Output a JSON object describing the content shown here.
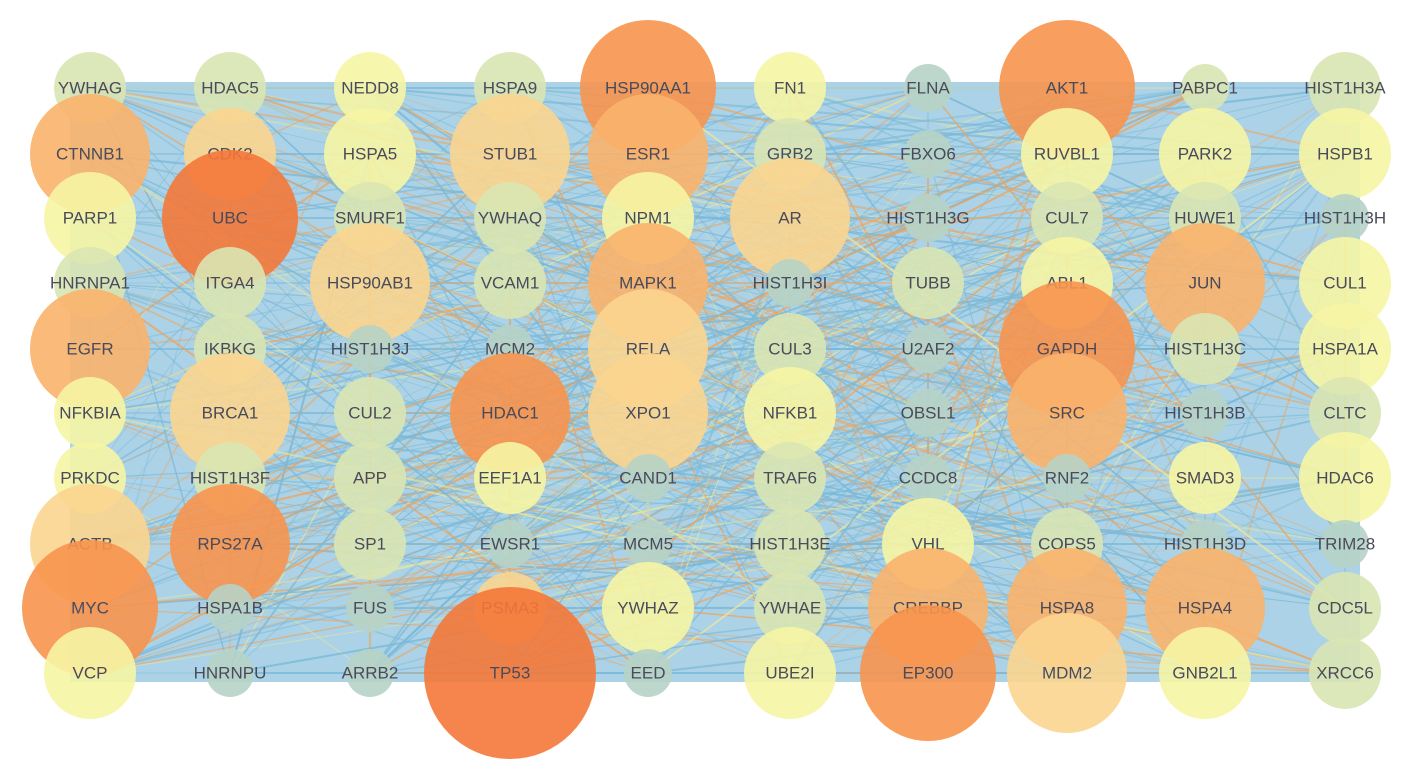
{
  "title": "",
  "layout": {
    "columns": 10,
    "rows": 10
  },
  "node_colors": {
    "tier0": "#b7d3c6",
    "tier1": "#d9e6b2",
    "tier2": "#f6f5a4",
    "tier3": "#fbd58f",
    "tier4": "#f9b26b",
    "tier5": "#f7944e",
    "tier6": "#f47838"
  },
  "edge_colors": {
    "primary": "#79b8d8",
    "secondary": "#f0a35a",
    "tertiary": "#e8e6a0"
  },
  "nodes": [
    {
      "label": "YWHAG",
      "tier": 1,
      "size": 1
    },
    {
      "label": "HDAC5",
      "tier": 1,
      "size": 1
    },
    {
      "label": "NEDD8",
      "tier": 2,
      "size": 1
    },
    {
      "label": "HSPA9",
      "tier": 1,
      "size": 1
    },
    {
      "label": "HSP90AA1",
      "tier": 5,
      "size": 4
    },
    {
      "label": "FN1",
      "tier": 2,
      "size": 1
    },
    {
      "label": "FLNA",
      "tier": 0,
      "size": 0
    },
    {
      "label": "AKT1",
      "tier": 5,
      "size": 4
    },
    {
      "label": "PABPC1",
      "tier": 1,
      "size": 0
    },
    {
      "label": "HIST1H3A",
      "tier": 1,
      "size": 1
    },
    {
      "label": "CTNNB1",
      "tier": 4,
      "size": 3
    },
    {
      "label": "CDK2",
      "tier": 3,
      "size": 2
    },
    {
      "label": "HSPA5",
      "tier": 2,
      "size": 2
    },
    {
      "label": "STUB1",
      "tier": 3,
      "size": 3
    },
    {
      "label": "ESR1",
      "tier": 4,
      "size": 3
    },
    {
      "label": "GRB2",
      "tier": 1,
      "size": 1
    },
    {
      "label": "FBXO6",
      "tier": 0,
      "size": 0
    },
    {
      "label": "RUVBL1",
      "tier": 2,
      "size": 2
    },
    {
      "label": "PARK2",
      "tier": 2,
      "size": 2
    },
    {
      "label": "HSPB1",
      "tier": 2,
      "size": 2
    },
    {
      "label": "PARP1",
      "tier": 2,
      "size": 2
    },
    {
      "label": "UBC",
      "tier": 6,
      "size": 4
    },
    {
      "label": "SMURF1",
      "tier": 1,
      "size": 1
    },
    {
      "label": "YWHAQ",
      "tier": 1,
      "size": 1
    },
    {
      "label": "NPM1",
      "tier": 2,
      "size": 2
    },
    {
      "label": "AR",
      "tier": 3,
      "size": 3
    },
    {
      "label": "HIST1H3G",
      "tier": 0,
      "size": 0
    },
    {
      "label": "CUL7",
      "tier": 1,
      "size": 1
    },
    {
      "label": "HUWE1",
      "tier": 1,
      "size": 1
    },
    {
      "label": "HIST1H3H",
      "tier": 0,
      "size": 0
    },
    {
      "label": "HNRNPA1",
      "tier": 1,
      "size": 1
    },
    {
      "label": "ITGA4",
      "tier": 1,
      "size": 1
    },
    {
      "label": "HSP90AB1",
      "tier": 3,
      "size": 3
    },
    {
      "label": "VCAM1",
      "tier": 1,
      "size": 1
    },
    {
      "label": "MAPK1",
      "tier": 4,
      "size": 3
    },
    {
      "label": "HIST1H3I",
      "tier": 0,
      "size": 0
    },
    {
      "label": "TUBB",
      "tier": 1,
      "size": 1
    },
    {
      "label": "ABL1",
      "tier": 2,
      "size": 2
    },
    {
      "label": "JUN",
      "tier": 4,
      "size": 3
    },
    {
      "label": "CUL1",
      "tier": 2,
      "size": 2
    },
    {
      "label": "EGFR",
      "tier": 4,
      "size": 3
    },
    {
      "label": "IKBKG",
      "tier": 1,
      "size": 1
    },
    {
      "label": "HIST1H3J",
      "tier": 0,
      "size": 0
    },
    {
      "label": "MCM2",
      "tier": 0,
      "size": 0
    },
    {
      "label": "RELA",
      "tier": 3,
      "size": 3
    },
    {
      "label": "CUL3",
      "tier": 1,
      "size": 1
    },
    {
      "label": "U2AF2",
      "tier": 0,
      "size": 0
    },
    {
      "label": "GAPDH",
      "tier": 5,
      "size": 4
    },
    {
      "label": "HIST1H3C",
      "tier": 1,
      "size": 1
    },
    {
      "label": "HSPA1A",
      "tier": 2,
      "size": 2
    },
    {
      "label": "NFKBIA",
      "tier": 2,
      "size": 1
    },
    {
      "label": "BRCA1",
      "tier": 3,
      "size": 3
    },
    {
      "label": "CUL2",
      "tier": 1,
      "size": 1
    },
    {
      "label": "HDAC1",
      "tier": 5,
      "size": 3
    },
    {
      "label": "XPO1",
      "tier": 3,
      "size": 3
    },
    {
      "label": "NFKB1",
      "tier": 2,
      "size": 2
    },
    {
      "label": "OBSL1",
      "tier": 0,
      "size": 0
    },
    {
      "label": "SRC",
      "tier": 4,
      "size": 3
    },
    {
      "label": "HIST1H3B",
      "tier": 0,
      "size": 0
    },
    {
      "label": "CLTC",
      "tier": 1,
      "size": 1
    },
    {
      "label": "PRKDC",
      "tier": 2,
      "size": 1
    },
    {
      "label": "HIST1H3F",
      "tier": 1,
      "size": 1
    },
    {
      "label": "APP",
      "tier": 1,
      "size": 1
    },
    {
      "label": "EEF1A1",
      "tier": 2,
      "size": 1
    },
    {
      "label": "CAND1",
      "tier": 0,
      "size": 0
    },
    {
      "label": "TRAF6",
      "tier": 1,
      "size": 1
    },
    {
      "label": "CCDC8",
      "tier": 0,
      "size": 0
    },
    {
      "label": "RNF2",
      "tier": 0,
      "size": 0
    },
    {
      "label": "SMAD3",
      "tier": 2,
      "size": 1
    },
    {
      "label": "HDAC6",
      "tier": 2,
      "size": 2
    },
    {
      "label": "ACTB",
      "tier": 3,
      "size": 3
    },
    {
      "label": "RPS27A",
      "tier": 5,
      "size": 3
    },
    {
      "label": "SP1",
      "tier": 1,
      "size": 1
    },
    {
      "label": "EWSR1",
      "tier": 0,
      "size": 0
    },
    {
      "label": "MCM5",
      "tier": 0,
      "size": 0
    },
    {
      "label": "HIST1H3E",
      "tier": 1,
      "size": 1
    },
    {
      "label": "VHL",
      "tier": 2,
      "size": 2
    },
    {
      "label": "COPS5",
      "tier": 1,
      "size": 1
    },
    {
      "label": "HIST1H3D",
      "tier": 0,
      "size": 0
    },
    {
      "label": "TRIM28",
      "tier": 0,
      "size": 0
    },
    {
      "label": "MYC",
      "tier": 5,
      "size": 4
    },
    {
      "label": "HSPA1B",
      "tier": 0,
      "size": 0
    },
    {
      "label": "FUS",
      "tier": 0,
      "size": 0
    },
    {
      "label": "PSMA3",
      "tier": 3,
      "size": 1
    },
    {
      "label": "YWHAZ",
      "tier": 2,
      "size": 2
    },
    {
      "label": "YWHAE",
      "tier": 1,
      "size": 1
    },
    {
      "label": "CREBBP",
      "tier": 4,
      "size": 3
    },
    {
      "label": "HSPA8",
      "tier": 4,
      "size": 3
    },
    {
      "label": "HSPA4",
      "tier": 4,
      "size": 3
    },
    {
      "label": "CDC5L",
      "tier": 1,
      "size": 1
    },
    {
      "label": "VCP",
      "tier": 2,
      "size": 2
    },
    {
      "label": "HNRNPU",
      "tier": 0,
      "size": 0
    },
    {
      "label": "ARRB2",
      "tier": 0,
      "size": 0
    },
    {
      "label": "TP53",
      "tier": 6,
      "size": 5
    },
    {
      "label": "EED",
      "tier": 0,
      "size": 0
    },
    {
      "label": "UBE2I",
      "tier": 2,
      "size": 2
    },
    {
      "label": "EP300",
      "tier": 5,
      "size": 4
    },
    {
      "label": "MDM2",
      "tier": 3,
      "size": 3
    },
    {
      "label": "GNB2L1",
      "tier": 2,
      "size": 2
    },
    {
      "label": "XRCC6",
      "tier": 1,
      "size": 1
    }
  ]
}
